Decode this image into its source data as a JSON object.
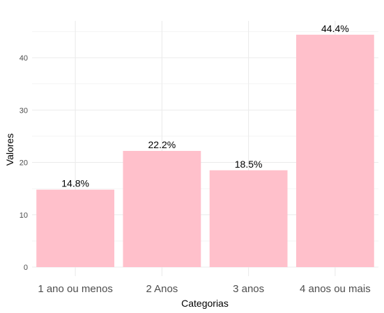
{
  "chart_data": {
    "type": "bar",
    "categories": [
      "1 ano ou menos",
      "2 Anos",
      "3 anos",
      "4 anos ou mais"
    ],
    "values": [
      14.8,
      22.2,
      18.5,
      44.4
    ],
    "data_labels": [
      "14.8%",
      "22.2%",
      "18.5%",
      "44.4%"
    ],
    "xlabel": "Categorias",
    "ylabel": "Valores",
    "ylim": [
      0,
      47
    ],
    "yticks": [
      0,
      10,
      20,
      30,
      40
    ],
    "grid": true,
    "bar_color": "#FFC0CB",
    "grid_color": "#EBEBEB"
  }
}
